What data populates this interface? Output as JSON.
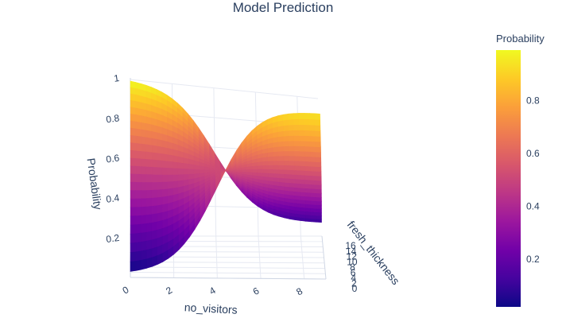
{
  "chart_data": {
    "type": "surface",
    "title": "Model Prediction",
    "x_axis": {
      "label": "no_visitors",
      "ticks": [
        "0",
        "2",
        "4",
        "6",
        "8"
      ],
      "range": [
        0,
        9
      ]
    },
    "y_axis": {
      "label": "fresh_thickness",
      "ticks": [
        "0",
        "2",
        "4",
        "6",
        "8",
        "10",
        "12",
        "14",
        "16"
      ],
      "range": [
        0,
        16
      ]
    },
    "z_axis": {
      "label": "Probability",
      "ticks": [
        "0.2",
        "0.4",
        "0.6",
        "0.8",
        "1"
      ],
      "range": [
        0,
        1
      ]
    },
    "colorbar": {
      "title": "Probability",
      "ticks": [
        "0.2",
        "0.4",
        "0.6",
        "0.8"
      ],
      "range": [
        0.02,
        0.99
      ],
      "colorscale": [
        "#0d0887",
        "#46039f",
        "#7201a8",
        "#9c179e",
        "#bd3786",
        "#d8576b",
        "#ed7953",
        "#fb9f3a",
        "#fdca26",
        "#f0f921"
      ]
    },
    "surface_corners": {
      "x0_y0": 0.03,
      "x9_y0": 0.94,
      "x0_y16": 0.99,
      "x9_y16": 0.1
    },
    "grid": true
  }
}
